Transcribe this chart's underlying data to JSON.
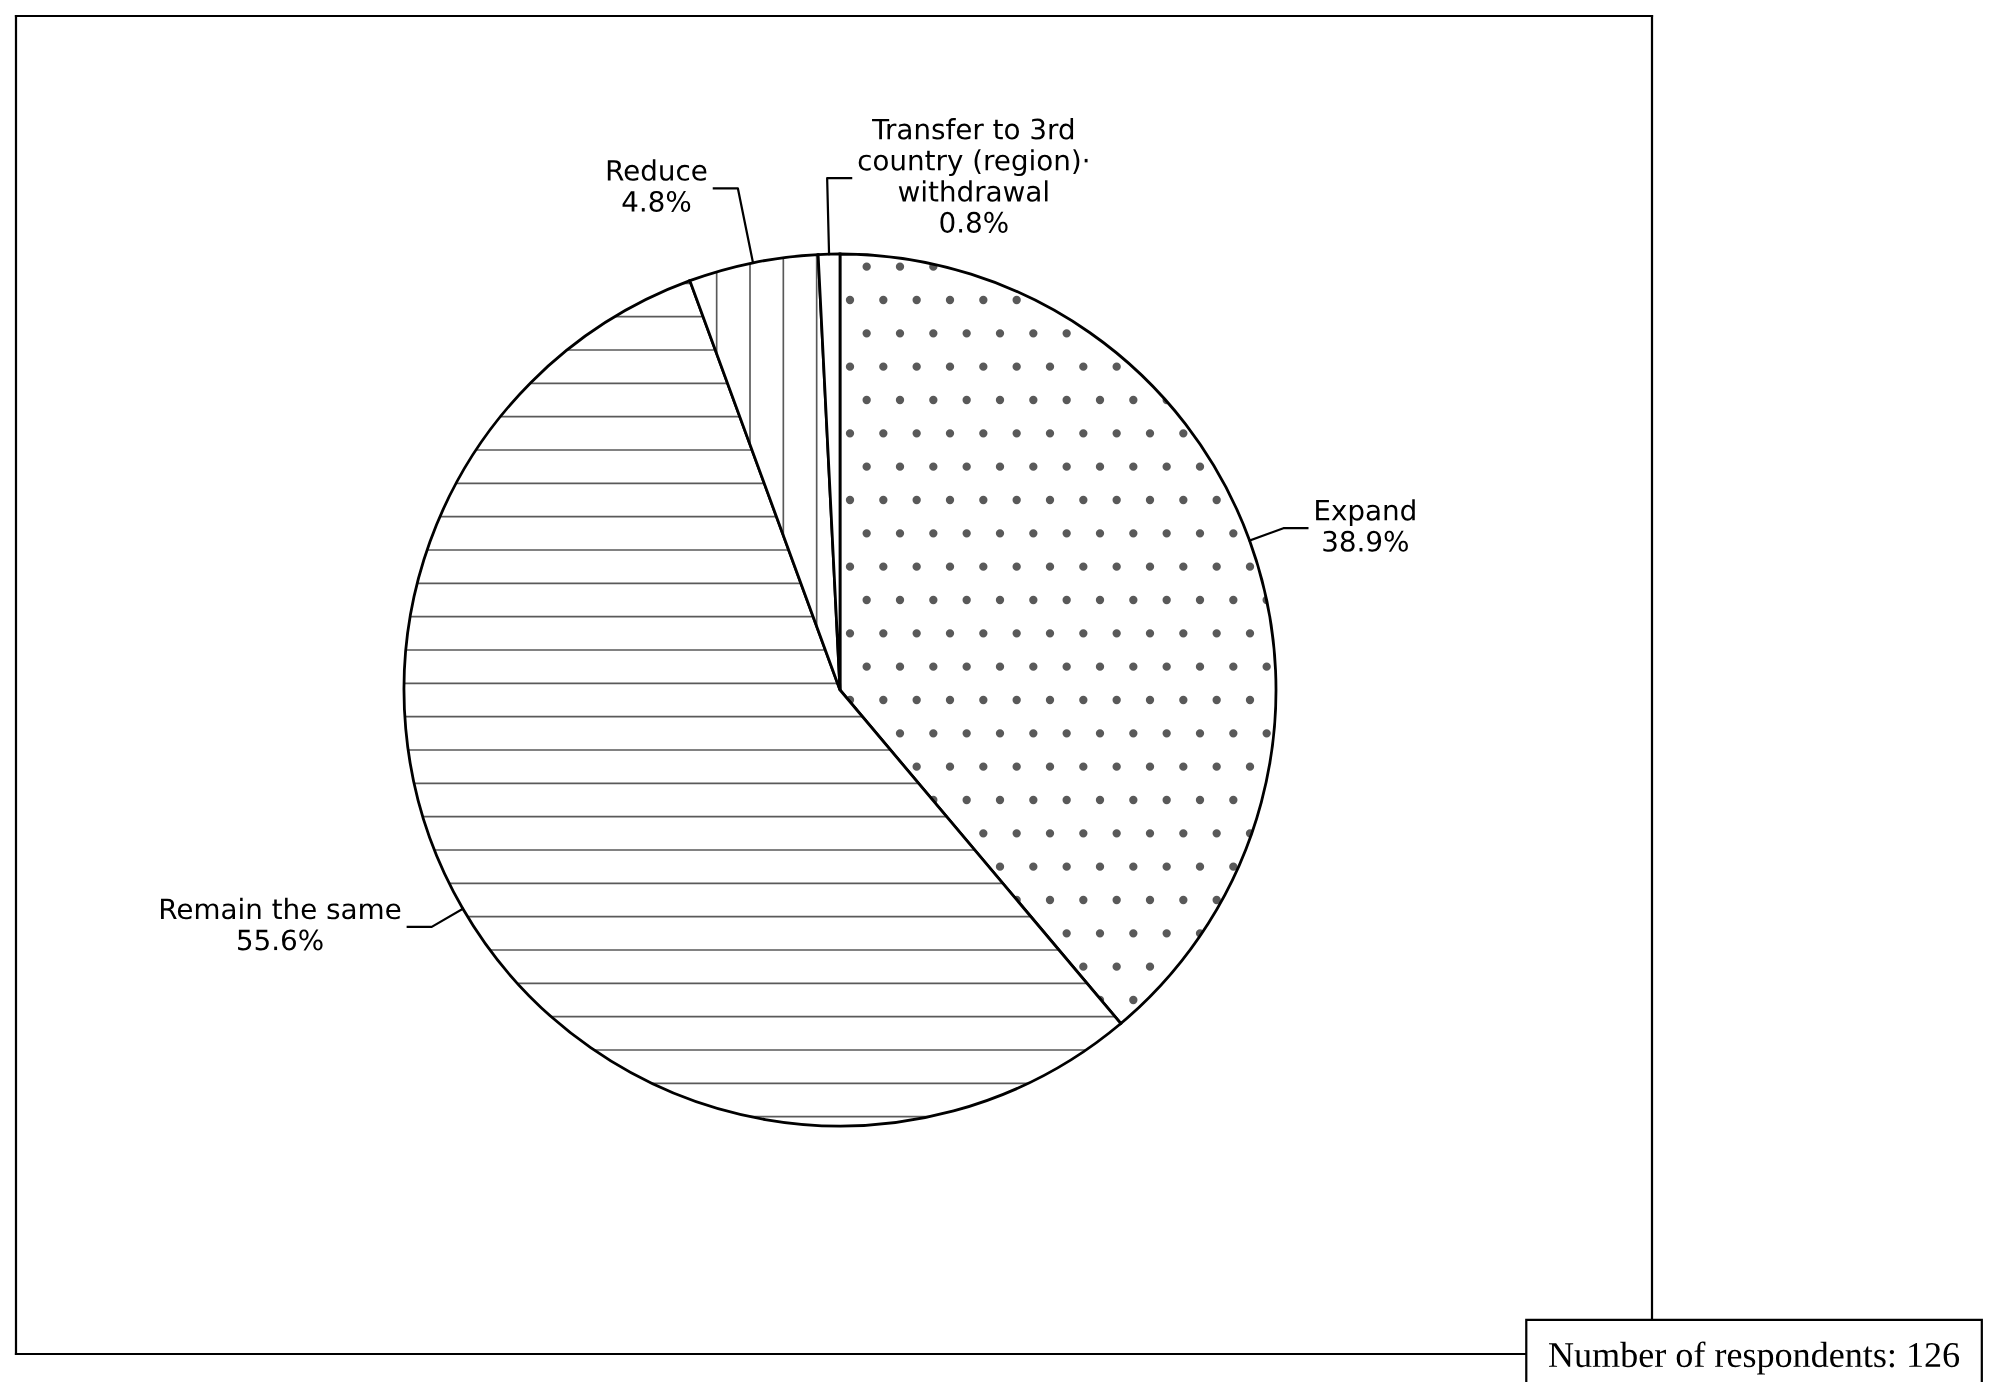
{
  "chart_data": {
    "type": "pie",
    "categories": [
      "Expand",
      "Remain the same",
      "Reduce",
      "Transfer to 3rd\ncountry (region)·\nwithdrawal"
    ],
    "values": [
      38.9,
      55.6,
      4.8,
      0.8
    ],
    "value_labels": [
      "38.9%",
      "55.6%",
      "4.8%",
      "0.8%"
    ],
    "annotations": [
      "Number of respondents: 126"
    ]
  }
}
